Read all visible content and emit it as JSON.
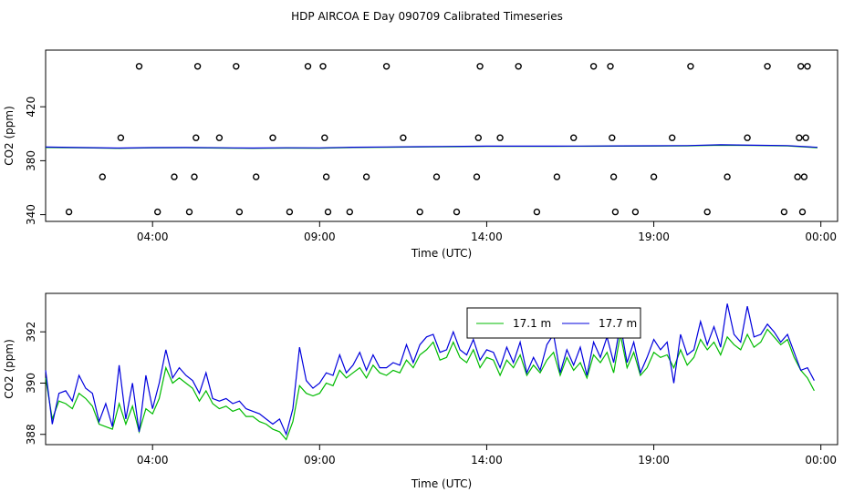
{
  "title": "HDP AIRCOA E  Day 090709  Calibrated Timeseries",
  "chart_data": [
    {
      "type": "scatter",
      "xlabel": "Time (UTC)",
      "ylabel": "CO2 (ppm)",
      "xlim": [
        0.8,
        24.5
      ],
      "ylim": [
        335,
        462
      ],
      "x_tick_values": [
        4,
        9,
        14,
        19,
        24
      ],
      "x_tick_labels": [
        "04:00",
        "09:00",
        "14:00",
        "19:00",
        "00:00"
      ],
      "y_tick_values": [
        340,
        380,
        420
      ],
      "y_tick_labels": [
        "340",
        "380",
        "420"
      ],
      "calibration_points": [
        {
          "x": 1.5,
          "y": 342
        },
        {
          "x": 2.5,
          "y": 368
        },
        {
          "x": 3.05,
          "y": 397
        },
        {
          "x": 3.6,
          "y": 450
        },
        {
          "x": 4.15,
          "y": 342
        },
        {
          "x": 4.65,
          "y": 368
        },
        {
          "x": 5.1,
          "y": 342
        },
        {
          "x": 5.25,
          "y": 368
        },
        {
          "x": 5.3,
          "y": 397
        },
        {
          "x": 5.35,
          "y": 450
        },
        {
          "x": 6.0,
          "y": 397
        },
        {
          "x": 6.5,
          "y": 450
        },
        {
          "x": 6.6,
          "y": 342
        },
        {
          "x": 7.1,
          "y": 368
        },
        {
          "x": 7.6,
          "y": 397
        },
        {
          "x": 8.1,
          "y": 342
        },
        {
          "x": 8.65,
          "y": 450
        },
        {
          "x": 9.1,
          "y": 450
        },
        {
          "x": 9.15,
          "y": 397
        },
        {
          "x": 9.2,
          "y": 368
        },
        {
          "x": 9.25,
          "y": 342
        },
        {
          "x": 9.9,
          "y": 342
        },
        {
          "x": 10.4,
          "y": 368
        },
        {
          "x": 11.0,
          "y": 450
        },
        {
          "x": 11.5,
          "y": 397
        },
        {
          "x": 12.0,
          "y": 342
        },
        {
          "x": 12.5,
          "y": 368
        },
        {
          "x": 13.1,
          "y": 342
        },
        {
          "x": 13.7,
          "y": 368
        },
        {
          "x": 13.75,
          "y": 397
        },
        {
          "x": 13.8,
          "y": 450
        },
        {
          "x": 14.4,
          "y": 397
        },
        {
          "x": 14.95,
          "y": 450
        },
        {
          "x": 15.5,
          "y": 342
        },
        {
          "x": 16.1,
          "y": 368
        },
        {
          "x": 16.6,
          "y": 397
        },
        {
          "x": 17.2,
          "y": 450
        },
        {
          "x": 17.7,
          "y": 450
        },
        {
          "x": 17.75,
          "y": 397
        },
        {
          "x": 17.8,
          "y": 368
        },
        {
          "x": 17.85,
          "y": 342
        },
        {
          "x": 18.45,
          "y": 342
        },
        {
          "x": 19.0,
          "y": 368
        },
        {
          "x": 19.55,
          "y": 397
        },
        {
          "x": 20.1,
          "y": 450
        },
        {
          "x": 20.6,
          "y": 342
        },
        {
          "x": 21.2,
          "y": 368
        },
        {
          "x": 21.8,
          "y": 397
        },
        {
          "x": 22.4,
          "y": 450
        },
        {
          "x": 22.9,
          "y": 342
        },
        {
          "x": 23.3,
          "y": 368
        },
        {
          "x": 23.35,
          "y": 397
        },
        {
          "x": 23.4,
          "y": 450
        },
        {
          "x": 23.45,
          "y": 342
        },
        {
          "x": 23.5,
          "y": 368
        },
        {
          "x": 23.55,
          "y": 397
        },
        {
          "x": 23.6,
          "y": 450
        }
      ],
      "series": [
        {
          "name": "17.1 m",
          "color": "#00bb00",
          "x": [
            0.8,
            2,
            3,
            4,
            5,
            6,
            7,
            8,
            9,
            10,
            11,
            12,
            13,
            14,
            15,
            16,
            17,
            18,
            19,
            20,
            21,
            22,
            23,
            23.9
          ],
          "y": [
            389.8,
            389.5,
            389.2,
            389.5,
            389.6,
            389.4,
            389.2,
            389.4,
            389.3,
            389.8,
            390.0,
            390.2,
            390.4,
            390.6,
            390.6,
            390.6,
            390.7,
            390.8,
            390.9,
            391.0,
            391.5,
            391.3,
            391.0,
            389.6
          ]
        },
        {
          "name": "17.7 m",
          "color": "#0000dd",
          "x": [
            0.8,
            2,
            3,
            4,
            5,
            6,
            7,
            8,
            9,
            10,
            11,
            12,
            13,
            14,
            15,
            16,
            17,
            18,
            19,
            20,
            21,
            22,
            23,
            23.9
          ],
          "y": [
            390.1,
            389.7,
            389.4,
            389.7,
            389.8,
            389.6,
            389.4,
            389.6,
            389.5,
            390.0,
            390.2,
            390.4,
            390.6,
            390.8,
            390.8,
            390.8,
            390.9,
            391.0,
            391.1,
            391.2,
            391.8,
            391.5,
            391.2,
            389.9
          ]
        }
      ]
    },
    {
      "type": "line",
      "xlabel": "Time (UTC)",
      "ylabel": "CO2 (ppm)",
      "xlim": [
        0.8,
        24.5
      ],
      "ylim": [
        387.6,
        393.5
      ],
      "x_tick_values": [
        4,
        9,
        14,
        19,
        24
      ],
      "x_tick_labels": [
        "04:00",
        "09:00",
        "14:00",
        "19:00",
        "00:00"
      ],
      "y_tick_values": [
        388,
        390,
        392
      ],
      "y_tick_labels": [
        "388",
        "390",
        "392"
      ],
      "legend_position": "top-center",
      "series": [
        {
          "name": "17.1 m",
          "color": "#00bb00",
          "x": [
            0.8,
            1.0,
            1.2,
            1.4,
            1.6,
            1.8,
            2.0,
            2.2,
            2.4,
            2.6,
            2.8,
            3.0,
            3.2,
            3.4,
            3.6,
            3.8,
            4.0,
            4.2,
            4.4,
            4.6,
            4.8,
            5.0,
            5.2,
            5.4,
            5.6,
            5.8,
            6.0,
            6.2,
            6.4,
            6.6,
            6.8,
            7.0,
            7.2,
            7.4,
            7.6,
            7.8,
            8.0,
            8.2,
            8.4,
            8.6,
            8.8,
            9.0,
            9.2,
            9.4,
            9.6,
            9.8,
            10.0,
            10.2,
            10.4,
            10.6,
            10.8,
            11.0,
            11.2,
            11.4,
            11.6,
            11.8,
            12.0,
            12.2,
            12.4,
            12.6,
            12.8,
            13.0,
            13.2,
            13.4,
            13.6,
            13.8,
            14.0,
            14.2,
            14.4,
            14.6,
            14.8,
            15.0,
            15.2,
            15.4,
            15.6,
            15.8,
            16.0,
            16.2,
            16.4,
            16.6,
            16.8,
            17.0,
            17.2,
            17.4,
            17.6,
            17.8,
            18.0,
            18.2,
            18.4,
            18.6,
            18.8,
            19.0,
            19.2,
            19.4,
            19.6,
            19.8,
            20.0,
            20.2,
            20.4,
            20.6,
            20.8,
            21.0,
            21.2,
            21.4,
            21.6,
            21.8,
            22.0,
            22.2,
            22.4,
            22.6,
            22.8,
            23.0,
            23.2,
            23.4,
            23.6,
            23.8
          ],
          "y": [
            390.2,
            388.6,
            389.3,
            389.2,
            389.0,
            389.6,
            389.4,
            389.1,
            388.4,
            388.3,
            388.2,
            389.2,
            388.4,
            389.1,
            388.1,
            389.0,
            388.8,
            389.4,
            390.6,
            390.0,
            390.2,
            390.0,
            389.8,
            389.3,
            389.7,
            389.2,
            389.0,
            389.1,
            388.9,
            389.0,
            388.7,
            388.7,
            388.5,
            388.4,
            388.2,
            388.1,
            387.8,
            388.5,
            389.9,
            389.6,
            389.5,
            389.6,
            390.0,
            389.9,
            390.5,
            390.2,
            390.4,
            390.6,
            390.2,
            390.7,
            390.4,
            390.3,
            390.5,
            390.4,
            390.9,
            390.6,
            391.1,
            391.3,
            391.6,
            390.9,
            391.0,
            391.6,
            391.0,
            390.8,
            391.3,
            390.6,
            391.0,
            390.9,
            390.3,
            390.9,
            390.6,
            391.1,
            390.3,
            390.7,
            390.4,
            390.9,
            391.2,
            390.3,
            391.0,
            390.5,
            390.8,
            390.2,
            391.1,
            390.8,
            391.2,
            390.4,
            391.9,
            390.6,
            391.2,
            390.3,
            390.6,
            391.2,
            391.0,
            391.1,
            390.6,
            391.3,
            390.7,
            391.0,
            391.7,
            391.3,
            391.6,
            391.1,
            391.8,
            391.5,
            391.3,
            391.9,
            391.4,
            391.6,
            392.1,
            391.8,
            391.5,
            391.7,
            391.0,
            390.5,
            390.2,
            389.7
          ]
        },
        {
          "name": "17.7 m",
          "color": "#0000dd",
          "x": [
            0.8,
            1.0,
            1.2,
            1.4,
            1.6,
            1.8,
            2.0,
            2.2,
            2.4,
            2.6,
            2.8,
            3.0,
            3.2,
            3.4,
            3.6,
            3.8,
            4.0,
            4.2,
            4.4,
            4.6,
            4.8,
            5.0,
            5.2,
            5.4,
            5.6,
            5.8,
            6.0,
            6.2,
            6.4,
            6.6,
            6.8,
            7.0,
            7.2,
            7.4,
            7.6,
            7.8,
            8.0,
            8.2,
            8.4,
            8.6,
            8.8,
            9.0,
            9.2,
            9.4,
            9.6,
            9.8,
            10.0,
            10.2,
            10.4,
            10.6,
            10.8,
            11.0,
            11.2,
            11.4,
            11.6,
            11.8,
            12.0,
            12.2,
            12.4,
            12.6,
            12.8,
            13.0,
            13.2,
            13.4,
            13.6,
            13.8,
            14.0,
            14.2,
            14.4,
            14.6,
            14.8,
            15.0,
            15.2,
            15.4,
            15.6,
            15.8,
            16.0,
            16.2,
            16.4,
            16.6,
            16.8,
            17.0,
            17.2,
            17.4,
            17.6,
            17.8,
            18.0,
            18.2,
            18.4,
            18.6,
            18.8,
            19.0,
            19.2,
            19.4,
            19.6,
            19.8,
            20.0,
            20.2,
            20.4,
            20.6,
            20.8,
            21.0,
            21.2,
            21.4,
            21.6,
            21.8,
            22.0,
            22.2,
            22.4,
            22.6,
            22.8,
            23.0,
            23.2,
            23.4,
            23.6,
            23.8
          ],
          "y": [
            390.5,
            388.4,
            389.6,
            389.7,
            389.3,
            390.3,
            389.8,
            389.6,
            388.5,
            389.2,
            388.3,
            390.7,
            388.6,
            390.0,
            388.1,
            390.3,
            389.0,
            390.0,
            391.3,
            390.2,
            390.6,
            390.3,
            390.1,
            389.6,
            390.4,
            389.4,
            389.3,
            389.4,
            389.2,
            389.3,
            389.0,
            388.9,
            388.8,
            388.6,
            388.4,
            388.6,
            388.0,
            389.0,
            391.4,
            390.1,
            389.8,
            390.0,
            390.4,
            390.3,
            391.1,
            390.4,
            390.7,
            391.2,
            390.5,
            391.1,
            390.6,
            390.6,
            390.8,
            390.7,
            391.5,
            390.8,
            391.5,
            391.8,
            391.9,
            391.2,
            391.3,
            392.0,
            391.3,
            391.1,
            391.7,
            390.9,
            391.3,
            391.2,
            390.6,
            391.4,
            390.8,
            391.6,
            390.4,
            391.0,
            390.5,
            391.5,
            391.9,
            390.4,
            391.3,
            390.7,
            391.4,
            390.3,
            391.6,
            391.0,
            391.8,
            390.8,
            392.3,
            390.8,
            391.6,
            390.4,
            391.0,
            391.7,
            391.3,
            391.6,
            390.0,
            391.9,
            391.1,
            391.3,
            392.4,
            391.5,
            392.2,
            391.4,
            393.1,
            391.9,
            391.6,
            393.0,
            391.8,
            391.9,
            392.3,
            392.0,
            391.6,
            391.9,
            391.2,
            390.5,
            390.6,
            390.1
          ]
        }
      ]
    }
  ]
}
